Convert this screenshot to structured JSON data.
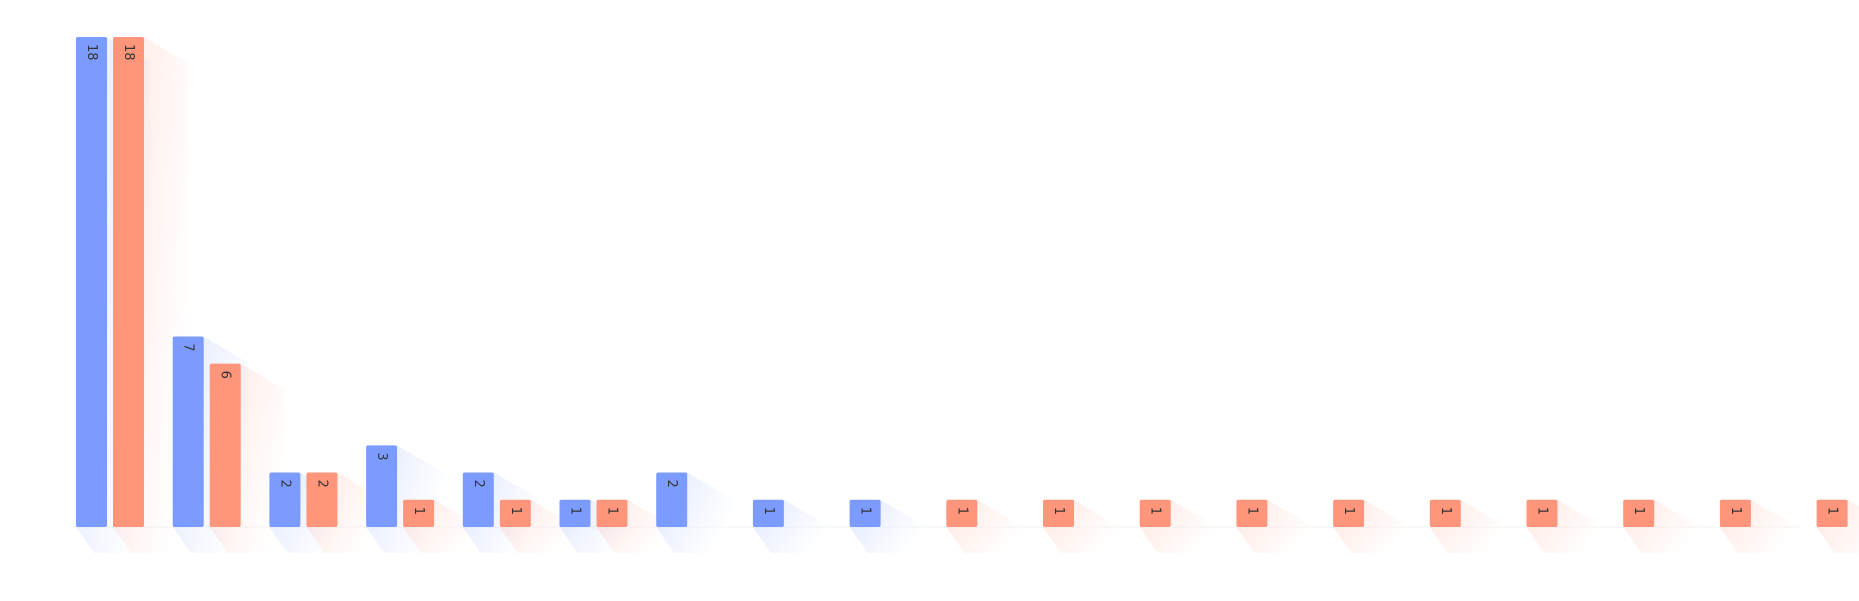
{
  "chart_data": {
    "type": "bar",
    "title": "",
    "xlabel": "",
    "ylabel": "",
    "ylim": [
      0,
      18
    ],
    "grid": false,
    "legend": "none",
    "categories": [
      "",
      "",
      "",
      "",
      "",
      "",
      "",
      "",
      "",
      "",
      "",
      "",
      "",
      "",
      "",
      "",
      "",
      "",
      ""
    ],
    "series": [
      {
        "color": "#7b9bff",
        "values": [
          18,
          7,
          2,
          3,
          2,
          1,
          2,
          1,
          1,
          null,
          null,
          null,
          null,
          null,
          null,
          null,
          null,
          null,
          null
        ]
      },
      {
        "color": "#ff957a",
        "values": [
          18,
          6,
          2,
          1,
          1,
          1,
          null,
          null,
          null,
          1,
          1,
          1,
          1,
          1,
          1,
          1,
          1,
          1,
          1
        ]
      }
    ]
  }
}
